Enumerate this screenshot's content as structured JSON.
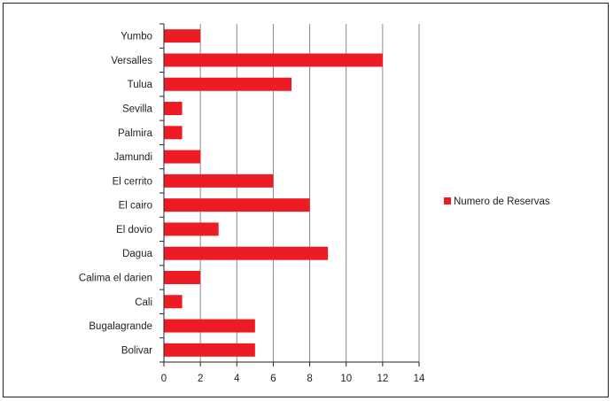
{
  "chart_data": {
    "type": "bar",
    "orientation": "horizontal",
    "categories": [
      "Yumbo",
      "Versalles",
      "Tulua",
      "Sevilla",
      "Palmira",
      "Jamundi",
      "El cerrito",
      "El cairo",
      "El dovio",
      "Dagua",
      "Calima el darien",
      "Cali",
      "Bugalagrande",
      "Bolivar"
    ],
    "series": [
      {
        "name": "Numero de Reservas",
        "values": [
          2,
          12,
          7,
          1,
          1,
          2,
          6,
          8,
          3,
          9,
          2,
          1,
          5,
          5
        ],
        "color": "#ED1C24"
      }
    ],
    "title": "",
    "xlabel": "",
    "ylabel": "",
    "xlim": [
      0,
      14
    ],
    "x_ticks": [
      "0",
      "2",
      "4",
      "6",
      "8",
      "10",
      "12",
      "14"
    ],
    "grid": "vertical",
    "legend_position": "right"
  }
}
